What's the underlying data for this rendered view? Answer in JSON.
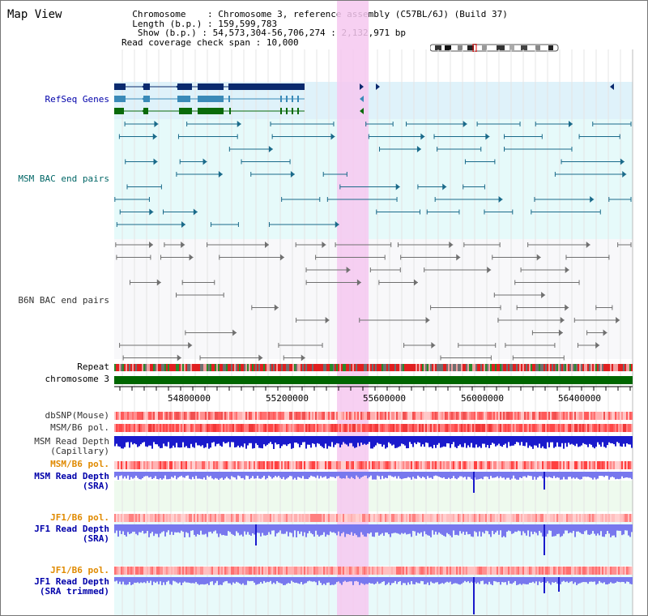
{
  "title": "Map View",
  "info": {
    "chromosome_label": "Chromosome",
    "chromosome_value": "Chromosome 3, reference assembly (C57BL/6J) (Build 37)",
    "length_label": "Length (b.p.)",
    "length_value": "159,599,783",
    "show_label": "Show (b.p.)",
    "show_value": "54,573,304-56,706,274 : 2,132,971 bp",
    "span_label": "Read coverage check span",
    "span_value": "10,000"
  },
  "region": {
    "start": 54573304,
    "end": 56706274
  },
  "highlight": {
    "start": 55490000,
    "end": 55620000
  },
  "axis_ticks": [
    "54800000",
    "55200000",
    "55600000",
    "56000000",
    "56400000"
  ],
  "tracks": {
    "refseq": {
      "label": "RefSeq Genes",
      "color": "#0000aa"
    },
    "msm_bac": {
      "label": "MSM BAC end pairs",
      "color": "#006666"
    },
    "b6n_bac": {
      "label": "B6N BAC end pairs",
      "color": "#333333"
    },
    "repeat": {
      "label": "Repeat",
      "color": "#000000"
    },
    "chromosome": {
      "label": "chromosome 3",
      "color": "#000000"
    },
    "dbsnp": {
      "label": "dbSNP(Mouse)",
      "color": "#333333"
    },
    "msm_pol": {
      "label": "MSM/B6 pol.",
      "color": "#333333"
    },
    "msm_depth_cap": {
      "label": "MSM Read Depth",
      "label2": "(Capillary)",
      "color": "#333333"
    },
    "msm_pol_sra": {
      "label": "MSM/B6 pol.",
      "color": "#e08a00"
    },
    "msm_depth_sra": {
      "label": "MSM Read Depth",
      "label2": "(SRA)",
      "color": "#0000aa"
    },
    "jf1_pol": {
      "label": "JF1/B6 pol.",
      "color": "#e08a00"
    },
    "jf1_depth": {
      "label": "JF1 Read Depth",
      "label2": "(SRA)",
      "color": "#0000aa"
    },
    "jf1_pol2": {
      "label": "JF1/B6 pol.",
      "color": "#e08a00"
    },
    "jf1_depth2": {
      "label": "JF1 Read Depth",
      "label2": "(SRA trimmed)",
      "color": "#0000aa"
    }
  },
  "colors": {
    "refseq_dark": "#0a2a6e",
    "refseq_mid": "#3a8ab8",
    "refseq_green": "#0a6a0a",
    "msm_pair": "#1a6a8a",
    "b6n_pair": "#707070",
    "chromosome_bar": "#006600",
    "depth_blue": "#1a1acc",
    "depth_light": "#7878ee",
    "highlight": "#f6c8f0"
  }
}
